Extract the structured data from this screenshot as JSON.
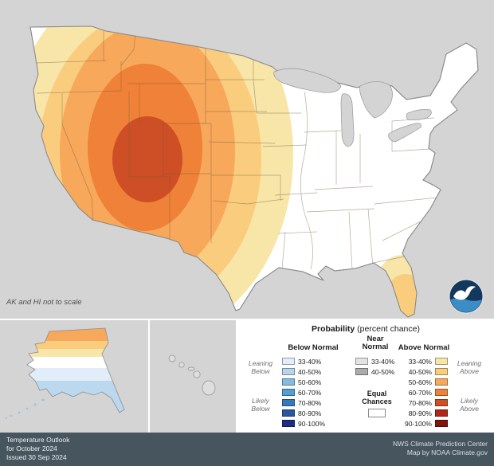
{
  "map": {
    "scale_note": "AK and HI not to scale",
    "eastern_region": "Equal Chances",
    "shading_classes_center_outward": [
      "70-80% Above",
      "60-70% Above",
      "50-60% Above",
      "40-50% Above",
      "33-40% Above"
    ],
    "ring_colors_outer_to_inner": [
      "#F8E5A8",
      "#FACD7E",
      "#F7A85A",
      "#EF8138",
      "#CE4F26"
    ],
    "florida_colors": [
      "#F8E5A8",
      "#FACD7E"
    ],
    "alaska_band_colors": [
      "#F7A85A",
      "#FACD7E",
      "#F8E5A8",
      "#FFFFFF",
      "#E1EDF8",
      "#BBD8EE"
    ]
  },
  "legend": {
    "title": "Probability",
    "title_suffix": " (percent chance)",
    "below": {
      "header": "Below Normal",
      "rows": [
        {
          "range": "33-40%",
          "color": "#E1EDF8"
        },
        {
          "range": "40-50%",
          "color": "#B6D5EC"
        },
        {
          "range": "50-60%",
          "color": "#84BCDF"
        },
        {
          "range": "60-70%",
          "color": "#539FD1"
        },
        {
          "range": "70-80%",
          "color": "#3579B8"
        },
        {
          "range": "80-90%",
          "color": "#2A55A2"
        },
        {
          "range": "90-100%",
          "color": "#1B2F7E"
        }
      ]
    },
    "near": {
      "header_line1": "Near",
      "header_line2": "Normal",
      "rows": [
        {
          "range": "33-40%",
          "color": "#E3E3E3"
        },
        {
          "range": "40-50%",
          "color": "#ABABAB"
        }
      ],
      "equal_line1": "Equal",
      "equal_line2": "Chances",
      "equal_color": "#FFFFFF"
    },
    "above": {
      "header": "Above Normal",
      "rows": [
        {
          "range": "33-40%",
          "color": "#F8E5A8"
        },
        {
          "range": "40-50%",
          "color": "#FACD7E"
        },
        {
          "range": "50-60%",
          "color": "#F7A85A"
        },
        {
          "range": "60-70%",
          "color": "#EF8138"
        },
        {
          "range": "70-80%",
          "color": "#CE4F26"
        },
        {
          "range": "80-90%",
          "color": "#B0261A"
        },
        {
          "range": "90-100%",
          "color": "#7E150E"
        }
      ]
    },
    "side_labels": {
      "leaning_below": "Leaning Below",
      "likely_below": "Likely Below",
      "leaning_above": "Leaning Above",
      "likely_above": "Likely Above"
    }
  },
  "footer": {
    "left_lines": [
      "Temperature Outlook",
      "for October 2024",
      "Issued 30 Sep 2024"
    ],
    "right_lines": [
      "NWS Climate Prediction Center",
      "Map by NOAA Climate.gov"
    ]
  },
  "logo": {
    "alt": "NOAA"
  }
}
